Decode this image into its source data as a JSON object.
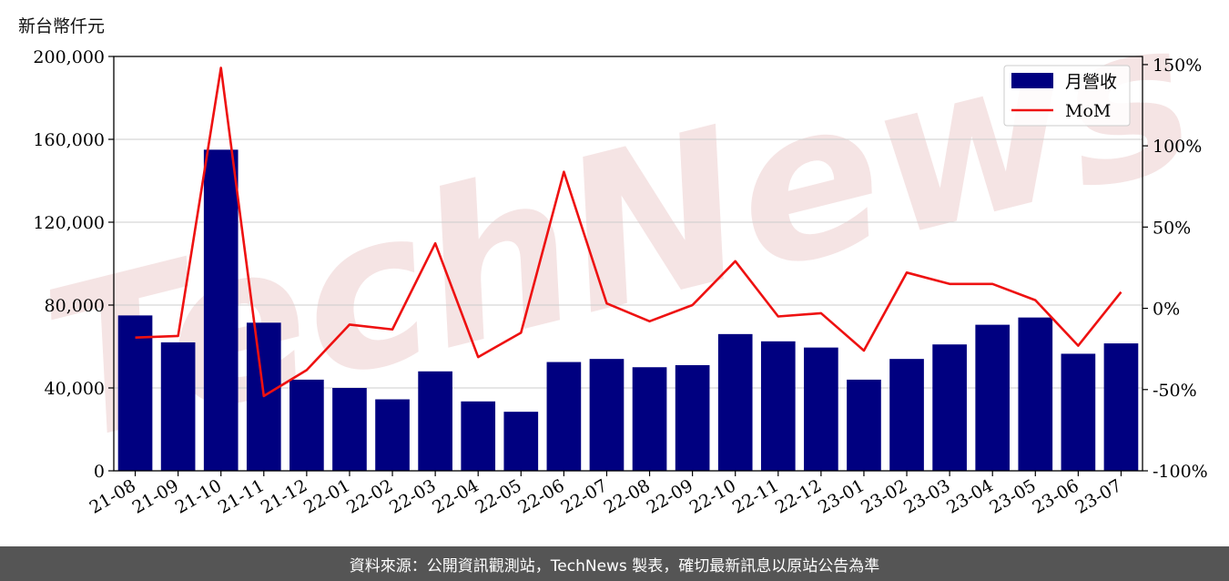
{
  "unit_label": "新台幣仟元",
  "footer_text": "資料來源：公開資訊觀測站，TechNews 製表，確切最新訊息以原站公告為準",
  "watermark_text": "TechNews",
  "colors": {
    "bar": "#000080",
    "line": "#ee1111",
    "grid": "#cccccc",
    "footer_bg": "#555555",
    "watermark": "#f3dede"
  },
  "chart_data": {
    "type": "bar",
    "title": "",
    "xlabel": "",
    "ylabel": "新台幣仟元",
    "legend_position": "top-right",
    "grid": true,
    "categories": [
      "21-08",
      "21-09",
      "21-10",
      "21-11",
      "21-12",
      "22-01",
      "22-02",
      "22-03",
      "22-04",
      "22-05",
      "22-06",
      "22-07",
      "22-08",
      "22-09",
      "22-10",
      "22-11",
      "22-12",
      "23-01",
      "23-02",
      "23-03",
      "23-04",
      "23-05",
      "23-06",
      "23-07"
    ],
    "ylim": [
      0,
      200000
    ],
    "y_ticks": [
      "0",
      "40,000",
      "80,000",
      "120,000",
      "160,000",
      "200,000"
    ],
    "y_tick_values": [
      0,
      40000,
      80000,
      120000,
      160000,
      200000
    ],
    "y2lim": [
      -100,
      155
    ],
    "y2_ticks": [
      "-100%",
      "-50%",
      "0%",
      "50%",
      "100%",
      "150%"
    ],
    "y2_tick_values": [
      -100,
      -50,
      0,
      50,
      100,
      150
    ],
    "series": [
      {
        "name": "月營收",
        "type": "bar",
        "axis": "left",
        "values": [
          75000,
          62000,
          155000,
          71500,
          44000,
          40000,
          34500,
          48000,
          33500,
          28500,
          52500,
          54000,
          50000,
          51000,
          66000,
          62500,
          59500,
          44000,
          54000,
          61000,
          70500,
          74000,
          56500,
          61500
        ]
      },
      {
        "name": "MoM",
        "type": "line",
        "axis": "right",
        "values": [
          -18,
          -17,
          148,
          -54,
          -38,
          -10,
          -13,
          40,
          -30,
          -15,
          84,
          3,
          -8,
          2,
          29,
          -5,
          -3,
          -26,
          22,
          15,
          15,
          5,
          -23,
          10
        ]
      }
    ]
  }
}
